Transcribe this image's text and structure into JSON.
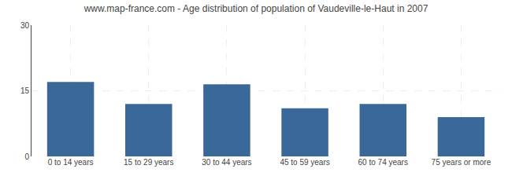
{
  "chart_data": {
    "type": "bar",
    "title": "www.map-france.com - Age distribution of population of Vaudeville-le-Haut in 2007",
    "categories": [
      "0 to 14 years",
      "15 to 29 years",
      "30 to 44 years",
      "45 to 59 years",
      "60 to 74 years",
      "75 years or more"
    ],
    "values": [
      17.0,
      12.0,
      16.5,
      11.0,
      12.0,
      9.0
    ],
    "color": "#3a6899",
    "ylim": [
      0,
      30
    ],
    "yticks": [
      0,
      15,
      30
    ],
    "grid": true
  }
}
